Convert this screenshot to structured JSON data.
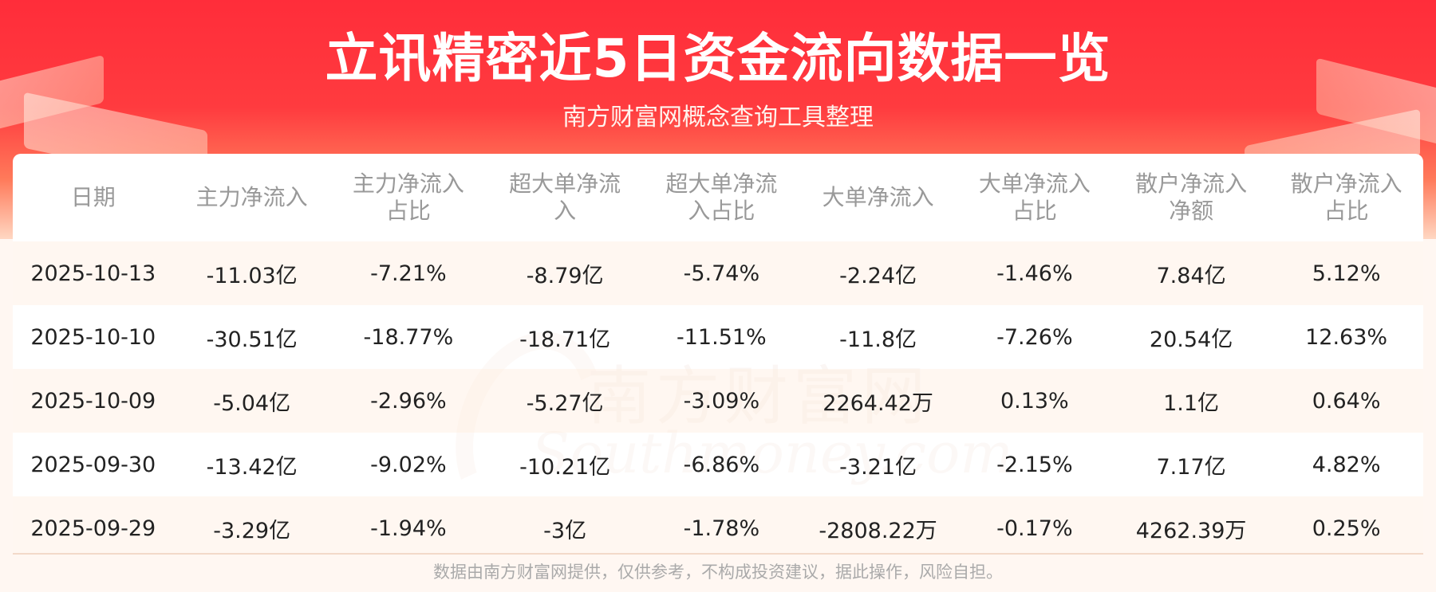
{
  "title": "立讯精密近5日资金流向数据一览",
  "subtitle": "南方财富网概念查询工具整理",
  "watermark": {
    "cn": "南方财富网",
    "en": "Southmoney.com"
  },
  "table": {
    "headers": [
      "日期",
      "主力净流入",
      "主力净流入\n占比",
      "超大单净流\n入",
      "超大单净流\n入占比",
      "大单净流入",
      "大单净流入\n占比",
      "散户净流入\n净额",
      "散户净流入\n占比"
    ],
    "rows": [
      [
        "2025-10-13",
        "-11.03亿",
        "-7.21%",
        "-8.79亿",
        "-5.74%",
        "-2.24亿",
        "-1.46%",
        "7.84亿",
        "5.12%"
      ],
      [
        "2025-10-10",
        "-30.51亿",
        "-18.77%",
        "-18.71亿",
        "-11.51%",
        "-11.8亿",
        "-7.26%",
        "20.54亿",
        "12.63%"
      ],
      [
        "2025-10-09",
        "-5.04亿",
        "-2.96%",
        "-5.27亿",
        "-3.09%",
        "2264.42万",
        "0.13%",
        "1.1亿",
        "0.64%"
      ],
      [
        "2025-09-30",
        "-13.42亿",
        "-9.02%",
        "-10.21亿",
        "-6.86%",
        "-3.21亿",
        "-2.15%",
        "7.17亿",
        "4.82%"
      ],
      [
        "2025-09-29",
        "-3.29亿",
        "-1.94%",
        "-3亿",
        "-1.78%",
        "-2808.22万",
        "-0.17%",
        "4262.39万",
        "0.25%"
      ]
    ]
  },
  "footer": "数据由南方财富网提供，仅供参考，不构成投资建议，据此操作，风险自担。"
}
